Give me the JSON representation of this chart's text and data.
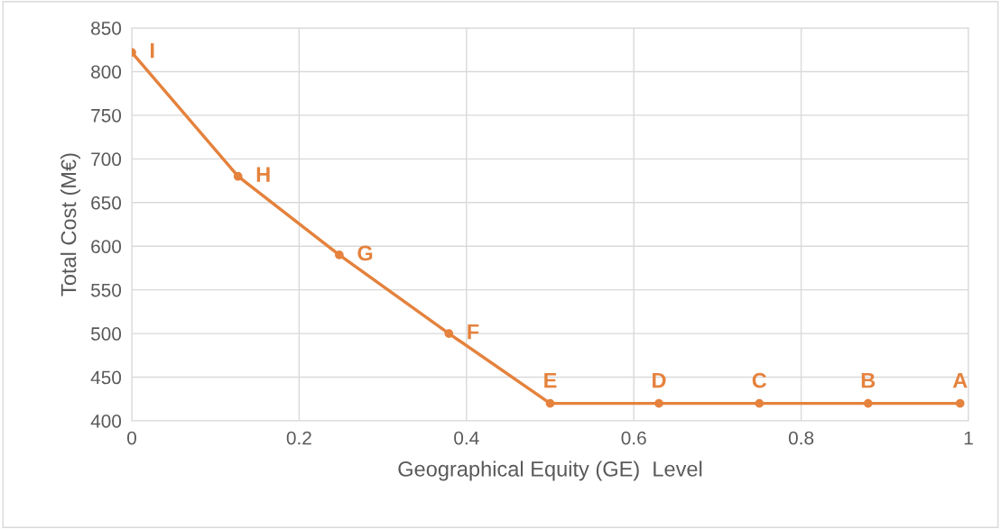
{
  "chart_data": {
    "type": "line",
    "xlabel": "Geographical Equity (GE)  Level",
    "ylabel": "Total Cost (M€)",
    "x": [
      0,
      0.127,
      0.248,
      0.379,
      0.5,
      0.63,
      0.75,
      0.88,
      0.99
    ],
    "series": [
      {
        "color": "#e5823d",
        "values": [
          822,
          680,
          590,
          500,
          420,
          420,
          420,
          420,
          420
        ]
      }
    ],
    "xlim": [
      0,
      1
    ],
    "xticks": [
      0,
      0.2,
      0.4,
      0.6,
      0.8,
      1
    ],
    "ylim": [
      400,
      850
    ],
    "yticks": [
      400,
      450,
      500,
      550,
      600,
      650,
      700,
      750,
      800,
      850
    ],
    "grid": true,
    "marker": "circle",
    "line_style": "solid",
    "annotations": [
      {
        "text": "I",
        "x": 0,
        "y": 822
      },
      {
        "text": "H",
        "x": 0.127,
        "y": 680
      },
      {
        "text": "G",
        "x": 0.248,
        "y": 590
      },
      {
        "text": "F",
        "x": 0.379,
        "y": 500
      },
      {
        "text": "E",
        "x": 0.5,
        "y": 420
      },
      {
        "text": "D",
        "x": 0.63,
        "y": 420
      },
      {
        "text": "C",
        "x": 0.75,
        "y": 420
      },
      {
        "text": "B",
        "x": 0.88,
        "y": 420
      },
      {
        "text": "A",
        "x": 0.99,
        "y": 420
      }
    ]
  }
}
